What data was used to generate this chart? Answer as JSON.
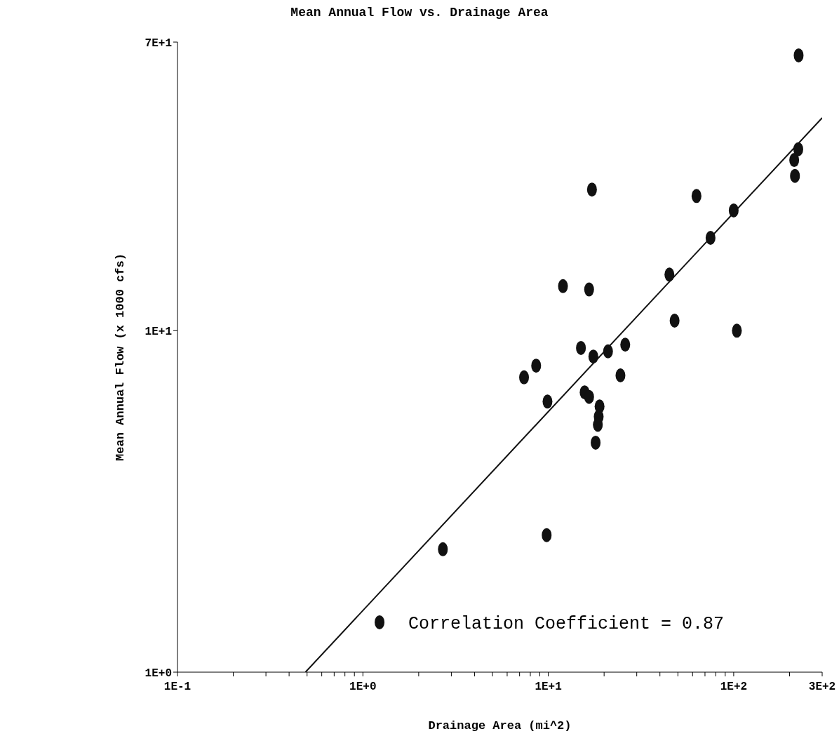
{
  "chart_data": {
    "type": "scatter",
    "title": "Mean Annual Flow vs. Drainage Area",
    "xlabel": "Drainage Area (mi^2)",
    "ylabel": "Mean Annual Flow (x 1000 cfs)",
    "log": "xy",
    "marker": "circle",
    "xlim": [
      0.1,
      300
    ],
    "ylim": [
      1,
      70
    ],
    "xticks": [
      {
        "value": 0.1,
        "label": "1E-1"
      },
      {
        "value": 0.2,
        "label": null
      },
      {
        "value": 0.3,
        "label": null
      },
      {
        "value": 0.4,
        "label": null
      },
      {
        "value": 0.5,
        "label": null
      },
      {
        "value": 0.6,
        "label": null
      },
      {
        "value": 0.7,
        "label": null
      },
      {
        "value": 0.8,
        "label": null
      },
      {
        "value": 0.9,
        "label": null
      },
      {
        "value": 1,
        "label": "1E+0"
      },
      {
        "value": 2,
        "label": null
      },
      {
        "value": 3,
        "label": null
      },
      {
        "value": 4,
        "label": null
      },
      {
        "value": 5,
        "label": null
      },
      {
        "value": 6,
        "label": null
      },
      {
        "value": 7,
        "label": null
      },
      {
        "value": 8,
        "label": null
      },
      {
        "value": 9,
        "label": null
      },
      {
        "value": 10,
        "label": "1E+1"
      },
      {
        "value": 20,
        "label": null
      },
      {
        "value": 30,
        "label": null
      },
      {
        "value": 40,
        "label": null
      },
      {
        "value": 50,
        "label": null
      },
      {
        "value": 60,
        "label": null
      },
      {
        "value": 70,
        "label": null
      },
      {
        "value": 80,
        "label": null
      },
      {
        "value": 90,
        "label": null
      },
      {
        "value": 100,
        "label": "1E+2"
      },
      {
        "value": 200,
        "label": null
      },
      {
        "value": 300,
        "label": "3E+2"
      }
    ],
    "yticks": [
      {
        "value": 1,
        "label": "1E+0"
      },
      {
        "value": 10,
        "label": "1E+1"
      },
      {
        "value": 70,
        "label": "7E+1"
      }
    ],
    "series": [
      {
        "color": "#111111",
        "x": [
          1.23,
          2.7,
          9.8,
          7.4,
          8.6,
          9.9,
          12,
          16.6,
          17.2,
          15,
          17.5,
          21,
          26,
          24.5,
          15.7,
          16.6,
          18.9,
          18.7,
          18.5,
          18,
          45,
          48,
          63,
          75,
          100,
          104,
          212,
          214,
          223,
          224
        ],
        "values": [
          1.4,
          2.29,
          2.52,
          7.3,
          7.9,
          6.2,
          13.5,
          13.2,
          25.9,
          8.9,
          8.4,
          8.7,
          9.1,
          7.4,
          6.6,
          6.4,
          6.0,
          5.6,
          5.3,
          4.7,
          14.6,
          10.7,
          24.8,
          18.7,
          22.5,
          10.0,
          31.6,
          28.4,
          34,
          64
        ]
      },
      {
        "type": "line",
        "marker": "none",
        "color": "#111111",
        "x": [
          0.49,
          300
        ],
        "values": [
          1,
          42
        ]
      }
    ],
    "annotations": [
      "Correlation Coefficient = 0.87"
    ]
  }
}
